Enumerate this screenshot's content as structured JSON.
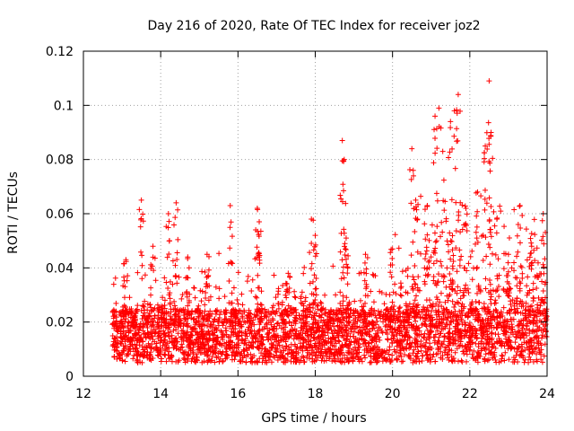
{
  "chart_data": {
    "type": "scatter",
    "title": "Day 216 of 2020, Rate Of TEC Index for receiver joz2",
    "xlabel": "GPS time / hours",
    "ylabel": "ROTI / TECUs",
    "xlim": [
      12,
      24
    ],
    "ylim": [
      0,
      0.12
    ],
    "x_ticks": [
      12,
      14,
      16,
      18,
      20,
      22,
      24
    ],
    "x_tick_labels": [
      "12",
      "14",
      "16",
      "18",
      "20",
      "22",
      "24"
    ],
    "y_ticks": [
      0,
      0.02,
      0.04,
      0.06,
      0.08,
      0.1,
      0.12
    ],
    "y_tick_labels": [
      "0",
      "0.02",
      "0.04",
      "0.06",
      "0.08",
      "0.1",
      "0.12"
    ],
    "grid": true,
    "marker": "+",
    "color": "#ff0000",
    "series": [
      {
        "name": "ROTI",
        "x_range": [
          12.75,
          24.0
        ],
        "baseline_band": [
          0.005,
          0.025
        ],
        "dense_band_points": 3500,
        "spikes": [
          {
            "x": 13.1,
            "y": 0.043
          },
          {
            "x": 13.5,
            "y": 0.065
          },
          {
            "x": 13.8,
            "y": 0.048
          },
          {
            "x": 14.2,
            "y": 0.06
          },
          {
            "x": 14.4,
            "y": 0.064
          },
          {
            "x": 14.7,
            "y": 0.044
          },
          {
            "x": 15.2,
            "y": 0.045
          },
          {
            "x": 15.8,
            "y": 0.063
          },
          {
            "x": 16.5,
            "y": 0.062
          },
          {
            "x": 16.55,
            "y": 0.057
          },
          {
            "x": 17.3,
            "y": 0.038
          },
          {
            "x": 17.9,
            "y": 0.058
          },
          {
            "x": 18.0,
            "y": 0.052
          },
          {
            "x": 18.7,
            "y": 0.087
          },
          {
            "x": 18.75,
            "y": 0.08
          },
          {
            "x": 18.8,
            "y": 0.051
          },
          {
            "x": 19.3,
            "y": 0.045
          },
          {
            "x": 20.0,
            "y": 0.047
          },
          {
            "x": 20.5,
            "y": 0.084
          },
          {
            "x": 20.6,
            "y": 0.065
          },
          {
            "x": 20.9,
            "y": 0.063
          },
          {
            "x": 21.1,
            "y": 0.096
          },
          {
            "x": 21.2,
            "y": 0.099
          },
          {
            "x": 21.3,
            "y": 0.083
          },
          {
            "x": 21.5,
            "y": 0.094
          },
          {
            "x": 21.6,
            "y": 0.098
          },
          {
            "x": 21.7,
            "y": 0.104
          },
          {
            "x": 21.9,
            "y": 0.062
          },
          {
            "x": 22.2,
            "y": 0.068
          },
          {
            "x": 22.4,
            "y": 0.085
          },
          {
            "x": 22.5,
            "y": 0.109
          },
          {
            "x": 22.55,
            "y": 0.09
          },
          {
            "x": 22.7,
            "y": 0.058
          },
          {
            "x": 23.0,
            "y": 0.045
          },
          {
            "x": 23.3,
            "y": 0.063
          },
          {
            "x": 23.6,
            "y": 0.048
          },
          {
            "x": 23.9,
            "y": 0.06
          }
        ]
      }
    ]
  }
}
